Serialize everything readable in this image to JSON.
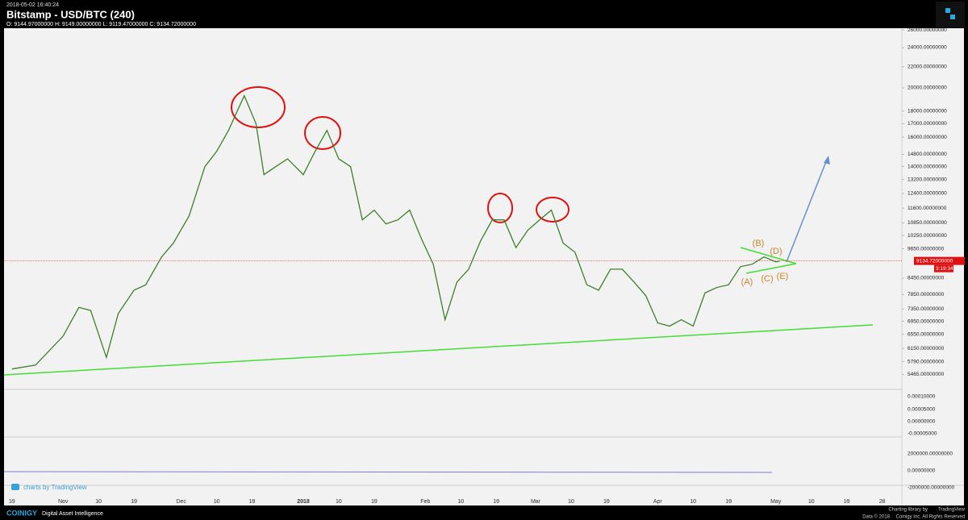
{
  "header": {
    "timestamp": "2018-05-02 16:40:24",
    "title": "Bitstamp - USD/BTC (240)",
    "ohlc": "O: 9144.97000000 H: 9149.00000000 L: 9119.47000000 C: 9134.72000000"
  },
  "chart_data": {
    "type": "line",
    "log_scale": true,
    "grid": false,
    "ylim": [
      5200,
      26200
    ],
    "yticks": [
      {
        "value": 26000,
        "label": "26000.00000000"
      },
      {
        "value": 24000,
        "label": "24000.00000000"
      },
      {
        "value": 22000,
        "label": "22000.00000000"
      },
      {
        "value": 20000,
        "label": "20000.00000000"
      },
      {
        "value": 18000,
        "label": "18000.00000000"
      },
      {
        "value": 17000,
        "label": "17000.00000000"
      },
      {
        "value": 16000,
        "label": "16000.00000000"
      },
      {
        "value": 14800,
        "label": "14800.00000000"
      },
      {
        "value": 14000,
        "label": "14000.00000000"
      },
      {
        "value": 13200,
        "label": "13200.00000000"
      },
      {
        "value": 12400,
        "label": "12400.00000000"
      },
      {
        "value": 11600,
        "label": "11600.00000000"
      },
      {
        "value": 10850,
        "label": "10850.00000000"
      },
      {
        "value": 10250,
        "label": "10250.00000000"
      },
      {
        "value": 9650,
        "label": "9650.00000000"
      },
      {
        "value": 8450,
        "label": "8450.00000000"
      },
      {
        "value": 7850,
        "label": "7850.00000000"
      },
      {
        "value": 7350,
        "label": "7350.00000000"
      },
      {
        "value": 6950,
        "label": "6950.00000000"
      },
      {
        "value": 6550,
        "label": "6550.00000000"
      },
      {
        "value": 6150,
        "label": "6150.00000000"
      },
      {
        "value": 5790,
        "label": "5790.00000000"
      },
      {
        "value": 5465,
        "label": "5465.00000000"
      }
    ],
    "xlim": [
      "2017-10-17",
      "2018-06-02"
    ],
    "xticks": [
      {
        "value": "2017-10-19",
        "label": "19"
      },
      {
        "value": "2017-11-01",
        "label": "Nov"
      },
      {
        "value": "2017-11-10",
        "label": "10"
      },
      {
        "value": "2017-11-19",
        "label": "19"
      },
      {
        "value": "2017-12-01",
        "label": "Dec"
      },
      {
        "value": "2017-12-10",
        "label": "10"
      },
      {
        "value": "2017-12-19",
        "label": "19"
      },
      {
        "value": "2018-01-01",
        "label": "2018"
      },
      {
        "value": "2018-01-10",
        "label": "10"
      },
      {
        "value": "2018-01-19",
        "label": "19"
      },
      {
        "value": "2018-02-01",
        "label": "Feb"
      },
      {
        "value": "2018-02-10",
        "label": "10"
      },
      {
        "value": "2018-02-19",
        "label": "19"
      },
      {
        "value": "2018-03-01",
        "label": "Mar"
      },
      {
        "value": "2018-03-10",
        "label": "10"
      },
      {
        "value": "2018-03-19",
        "label": "19"
      },
      {
        "value": "2018-04-01",
        "label": "Apr"
      },
      {
        "value": "2018-04-10",
        "label": "10"
      },
      {
        "value": "2018-04-19",
        "label": "19"
      },
      {
        "value": "2018-05-01",
        "label": "May"
      },
      {
        "value": "2018-05-10",
        "label": "10"
      },
      {
        "value": "2018-05-19",
        "label": "19"
      },
      {
        "value": "2018-05-28",
        "label": "28"
      }
    ],
    "series": [
      {
        "color": "#3f7f2c",
        "x": [
          "2017-10-19",
          "2017-10-25",
          "2017-11-01",
          "2017-11-05",
          "2017-11-08",
          "2017-11-12",
          "2017-11-15",
          "2017-11-19",
          "2017-11-22",
          "2017-11-26",
          "2017-11-29",
          "2017-12-03",
          "2017-12-07",
          "2017-12-10",
          "2017-12-13",
          "2017-12-17",
          "2017-12-20",
          "2017-12-22",
          "2017-12-25",
          "2017-12-28",
          "2018-01-01",
          "2018-01-04",
          "2018-01-07",
          "2018-01-10",
          "2018-01-13",
          "2018-01-16",
          "2018-01-19",
          "2018-01-22",
          "2018-01-25",
          "2018-01-28",
          "2018-01-31",
          "2018-02-03",
          "2018-02-06",
          "2018-02-09",
          "2018-02-12",
          "2018-02-15",
          "2018-02-18",
          "2018-02-21",
          "2018-02-24",
          "2018-02-27",
          "2018-03-02",
          "2018-03-05",
          "2018-03-08",
          "2018-03-11",
          "2018-03-14",
          "2018-03-17",
          "2018-03-20",
          "2018-03-23",
          "2018-03-26",
          "2018-03-29",
          "2018-04-01",
          "2018-04-04",
          "2018-04-07",
          "2018-04-10",
          "2018-04-13",
          "2018-04-16",
          "2018-04-19",
          "2018-04-22",
          "2018-04-25",
          "2018-04-28",
          "2018-05-01",
          "2018-05-02"
        ],
        "values": [
          5600,
          5700,
          6500,
          7400,
          7300,
          5900,
          7200,
          8000,
          8200,
          9300,
          9900,
          11200,
          14000,
          15000,
          16500,
          19300,
          17000,
          13500,
          14000,
          14500,
          13500,
          15000,
          16500,
          14500,
          14000,
          11000,
          11500,
          10800,
          11000,
          11500,
          10100,
          9000,
          7000,
          8300,
          8800,
          10000,
          11000,
          11000,
          9700,
          10500,
          11000,
          11500,
          9900,
          9500,
          8200,
          8000,
          8800,
          8800,
          8300,
          7800,
          6900,
          6800,
          7000,
          6800,
          7900,
          8100,
          8200,
          8900,
          9000,
          9300,
          9100,
          9134.72
        ]
      }
    ],
    "last_price": {
      "value": 9134.72,
      "label": "9134.72000000"
    },
    "countdown": "3:19:34",
    "annotations": [
      "(A)",
      "(B)",
      "(C)",
      "(D)",
      "(E)"
    ]
  },
  "panels": {
    "indicator_ticks": [
      "0.00010000",
      "0.00005000",
      "0.00000000",
      "-0.00005000"
    ],
    "volume_flow_ticks": [
      "2000000.00000000",
      "0.00000000",
      "-2000000.00000000"
    ]
  },
  "footer": {
    "brand": "COINIGY",
    "tagline": "Digital Asset Intelligence",
    "watermark": "charts by TradingView",
    "library": "Charting library by",
    "library_name": "TradingView",
    "data_credit": "Data © 2018",
    "rights": "Coinigy Inc. All Rights Reserved"
  }
}
